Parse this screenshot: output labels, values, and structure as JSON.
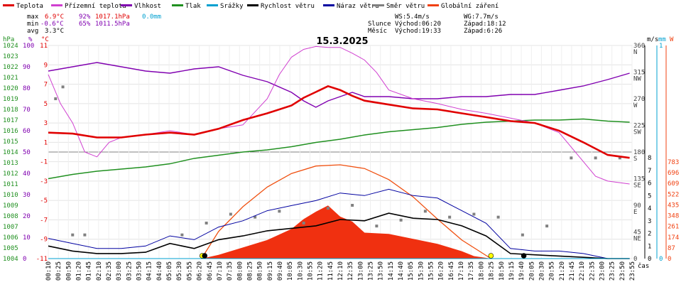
{
  "title": "15.3.2025",
  "legend": [
    {
      "key": "teplota",
      "label": "Teplota",
      "color": "#e00000"
    },
    {
      "key": "rosny",
      "label": "Přízemní teplota",
      "color": "#d040d0"
    },
    {
      "key": "vlhkost",
      "label": "Vlhkost",
      "color": "#8000b0"
    },
    {
      "key": "tlak",
      "label": "Tlak",
      "color": "#209020"
    },
    {
      "key": "srazky",
      "label": "Srážky",
      "color": "#00a0d0"
    },
    {
      "key": "rychlost",
      "label": "Rychlost větru",
      "color": "#000000"
    },
    {
      "key": "naraz",
      "label": "Náraz větru",
      "color": "#0000a0"
    },
    {
      "key": "smer",
      "label": "Směr větru",
      "color": "#808080"
    },
    {
      "key": "zareni",
      "label": "Globální záření",
      "color": "#f04010"
    }
  ],
  "stats": {
    "max_label": "max",
    "max_temp": "6.9°C",
    "max_hum": "92%",
    "max_press": "1017.1hPa",
    "max_rain": "0.0mm",
    "min_label": "min",
    "min_temp": "-0.6°C",
    "min_hum": "65%",
    "min_press": "1011.5hPa",
    "avg_label": "avg",
    "avg_temp": "3.3°C"
  },
  "wind_info": {
    "ws": "WS:5.4m/s",
    "wg": "WG:7.7m/s"
  },
  "sun_info": {
    "label": "Slunce",
    "rise": "Východ:06:20",
    "set": "Západ:18:12"
  },
  "moon_info": {
    "label": "Měsíc",
    "rise": "Východ:19:33",
    "set": "Západ:6:26"
  },
  "axes": {
    "left1_unit": "hPa",
    "left2_unit": "%",
    "left3_unit": "°C",
    "right1_unit": "m/s",
    "right2_unit": "mm",
    "right3_unit": "W",
    "x_unit": "čas",
    "hpa_ticks": [
      "1024",
      "1023",
      "1022",
      "1021",
      "1020",
      "1019",
      "1018",
      "1017",
      "1016",
      "1015",
      "1014",
      "1013",
      "1012",
      "1011",
      "1010",
      "1009",
      "1008",
      "1007",
      "1006",
      "1005",
      "1004"
    ],
    "pct_ticks": [
      "100",
      "90",
      "80",
      "70",
      "60",
      "50",
      "40",
      "30",
      "20",
      "10",
      "0"
    ],
    "temp_ticks": [
      "11",
      "9",
      "7",
      "5",
      "3",
      "1",
      "-1",
      "-3",
      "-5",
      "-7",
      "-9",
      "-11"
    ],
    "dir_ticks": [
      "360",
      "315",
      "270",
      "225",
      "180",
      "135",
      "90",
      "45",
      "0"
    ],
    "dir_labels": [
      "N",
      "NW",
      "W",
      "SW",
      "S",
      "SE",
      "E",
      "NE",
      ""
    ],
    "ms_ticks": [
      "8",
      "7",
      "6",
      "5",
      "4",
      "3",
      "2",
      "1",
      "0"
    ],
    "mm_ticks": [
      "1",
      "0"
    ],
    "w_ticks": [
      "783",
      "696",
      "609",
      "522",
      "435",
      "348",
      "261",
      "174",
      "87",
      "0"
    ],
    "x_ticks": [
      "00:10",
      "00:25",
      "00:50",
      "01:20",
      "01:45",
      "02:10",
      "02:35",
      "03:00",
      "03:25",
      "03:50",
      "04:15",
      "04:40",
      "05:05",
      "05:30",
      "05:55",
      "06:20",
      "06:45",
      "07:10",
      "07:35",
      "08:00",
      "08:25",
      "08:50",
      "09:15",
      "09:40",
      "10:05",
      "10:30",
      "10:55",
      "11:20",
      "11:45",
      "12:10",
      "12:35",
      "13:00",
      "13:25",
      "13:50",
      "14:15",
      "14:40",
      "15:05",
      "15:30",
      "15:55",
      "16:20",
      "16:45",
      "17:10",
      "17:35",
      "18:00",
      "18:25",
      "18:50",
      "19:15",
      "19:40",
      "20:05",
      "20:30",
      "20:55",
      "21:20",
      "21:45",
      "22:10",
      "22:35",
      "23:00",
      "23:25",
      "23:50",
      "23:55"
    ]
  },
  "chart_data": {
    "type": "line",
    "title": "15.3.2025",
    "x_range": [
      "00:00",
      "24:00"
    ],
    "series": [
      {
        "name": "Teplota",
        "unit": "°C",
        "range": [
          -11,
          11
        ],
        "x": [
          0,
          1,
          2,
          3,
          4,
          5,
          6,
          7,
          8,
          9,
          10,
          10.5,
          11,
          11.5,
          12,
          12.5,
          13,
          14,
          15,
          16,
          17,
          18,
          19,
          20,
          21,
          22,
          23,
          23.9
        ],
        "values": [
          2,
          1.9,
          1.5,
          1.5,
          1.8,
          2.0,
          1.8,
          2.4,
          3.3,
          4.0,
          4.8,
          5.6,
          6.2,
          6.8,
          6.4,
          5.8,
          5.3,
          4.9,
          4.5,
          4.4,
          4.0,
          3.6,
          3.2,
          3.0,
          2.2,
          1.0,
          -0.3,
          -0.6
        ]
      },
      {
        "name": "Přízemní teplota",
        "unit": "°C",
        "range": [
          -11,
          11
        ],
        "x": [
          0,
          0.5,
          1,
          1.5,
          2,
          2.5,
          3,
          4,
          5,
          6,
          7,
          8,
          9,
          9.5,
          10,
          10.5,
          11,
          11.5,
          12,
          12.5,
          13,
          13.5,
          14,
          15,
          16,
          17,
          18,
          19,
          20,
          21,
          22,
          22.5,
          23,
          23.9
        ],
        "values": [
          8,
          5,
          3,
          0,
          -0.5,
          1,
          1.5,
          1.8,
          2.2,
          1.8,
          2.4,
          2.8,
          5.5,
          8.0,
          9.8,
          10.6,
          10.9,
          10.8,
          10.8,
          10.2,
          9.5,
          8.2,
          6.4,
          5.5,
          5.0,
          4.4,
          4.0,
          3.5,
          3.0,
          2.0,
          -1.0,
          -2.5,
          -3.0,
          -3.3
        ]
      },
      {
        "name": "Vlhkost",
        "unit": "%",
        "range": [
          0,
          100
        ],
        "x": [
          0,
          1,
          2,
          3,
          4,
          5,
          6,
          7,
          8,
          9,
          10,
          10.5,
          11,
          11.5,
          12,
          12.5,
          13,
          14,
          15,
          16,
          17,
          18,
          19,
          20,
          21,
          22,
          23,
          23.9
        ],
        "values": [
          88,
          90,
          92,
          90,
          88,
          87,
          89,
          90,
          86,
          83,
          78,
          74,
          71,
          74,
          76,
          78,
          76,
          76,
          75,
          75,
          76,
          76,
          77,
          77,
          79,
          81,
          84,
          87
        ]
      },
      {
        "name": "Tlak",
        "unit": "hPa",
        "range": [
          1004,
          1024
        ],
        "x": [
          0,
          1,
          2,
          3,
          4,
          5,
          6,
          7,
          8,
          9,
          10,
          11,
          12,
          13,
          14,
          15,
          16,
          17,
          18,
          19,
          20,
          21,
          22,
          23,
          23.9
        ],
        "values": [
          1011.5,
          1011.9,
          1012.2,
          1012.4,
          1012.6,
          1012.9,
          1013.4,
          1013.7,
          1014.0,
          1014.2,
          1014.5,
          1014.9,
          1015.2,
          1015.6,
          1015.9,
          1016.1,
          1016.3,
          1016.6,
          1016.8,
          1016.9,
          1017.0,
          1017.0,
          1017.1,
          1016.9,
          1016.8
        ]
      },
      {
        "name": "Srážky",
        "unit": "mm",
        "range": [
          0,
          1
        ],
        "x": [
          0,
          23.9
        ],
        "values": [
          0,
          0
        ]
      },
      {
        "name": "Rychlost větru",
        "unit": "m/s",
        "range": [
          0,
          8
        ],
        "x": [
          0,
          1,
          2,
          3,
          4,
          5,
          6,
          7,
          8,
          9,
          10,
          11,
          12,
          13,
          14,
          15,
          16,
          17,
          18,
          19,
          20,
          21,
          22,
          23,
          23.9
        ],
        "values": [
          1.0,
          0.6,
          0.4,
          0.4,
          0.5,
          1.2,
          0.8,
          1.5,
          1.8,
          2.2,
          2.4,
          2.6,
          3.1,
          3.0,
          3.6,
          3.2,
          3.1,
          2.6,
          1.8,
          0.4,
          0.3,
          0.2,
          0.1,
          0,
          0
        ]
      },
      {
        "name": "Náraz větru",
        "unit": "m/s",
        "range": [
          0,
          8
        ],
        "x": [
          0,
          1,
          2,
          3,
          4,
          5,
          6,
          7,
          8,
          9,
          10,
          11,
          12,
          13,
          14,
          15,
          16,
          17,
          18,
          19,
          20,
          21,
          22,
          23,
          23.9
        ],
        "values": [
          1.6,
          1.2,
          0.8,
          0.8,
          1.0,
          1.8,
          1.5,
          2.5,
          3.0,
          3.8,
          4.2,
          4.6,
          5.2,
          5.0,
          5.5,
          5.0,
          4.8,
          3.8,
          2.8,
          0.8,
          0.6,
          0.6,
          0.4,
          0,
          0
        ]
      },
      {
        "name": "Směr větru",
        "unit": "°",
        "range": [
          0,
          360
        ],
        "x": [
          0.3,
          0.6,
          1.0,
          1.5,
          5.5,
          6.5,
          7.5,
          8.5,
          9.5,
          10.5,
          11.5,
          12.5,
          13.5,
          14.5,
          15.5,
          16.5,
          17.5,
          18.5,
          19.5,
          20.5,
          21.5,
          22.5,
          23.5
        ],
        "values": [
          270,
          290,
          40,
          40,
          40,
          60,
          75,
          70,
          80,
          60,
          85,
          90,
          55,
          65,
          80,
          70,
          75,
          70,
          40,
          55,
          170,
          170,
          170
        ]
      },
      {
        "name": "Globální záření",
        "unit": "W/m²",
        "range": [
          0,
          783
        ],
        "x": [
          6.3,
          7,
          8,
          9,
          10,
          10.5,
          11,
          11.5,
          12,
          12.5,
          13,
          14,
          15,
          16,
          17,
          17.5,
          18.2
        ],
        "values": [
          0,
          30,
          90,
          150,
          240,
          320,
          380,
          430,
          340,
          300,
          210,
          200,
          160,
          120,
          60,
          20,
          0
        ]
      },
      {
        "name": "Teoretické záření",
        "unit": "W/m²",
        "range": [
          0,
          783
        ],
        "x": [
          6.3,
          7,
          8,
          9,
          10,
          11,
          12,
          13,
          14,
          15,
          16,
          17,
          18.2
        ],
        "values": [
          0,
          220,
          420,
          580,
          690,
          750,
          760,
          730,
          640,
          500,
          320,
          150,
          0
        ]
      }
    ]
  }
}
